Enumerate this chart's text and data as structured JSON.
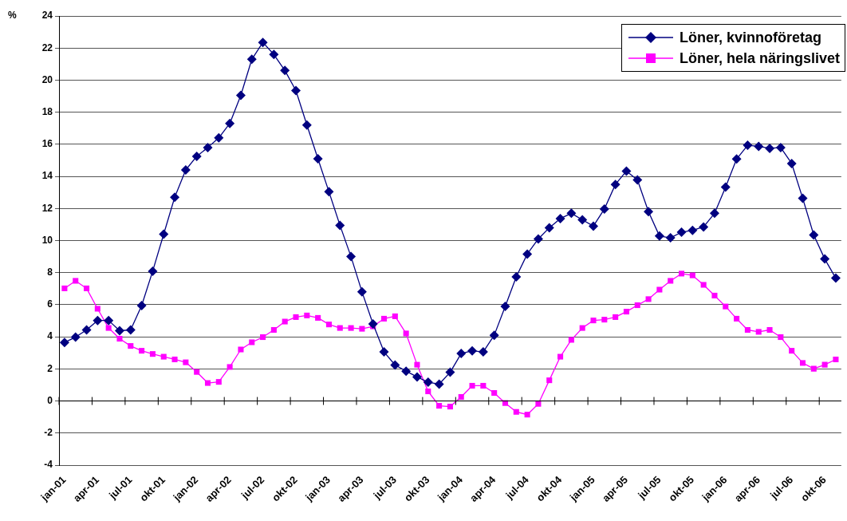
{
  "chart_data": {
    "type": "line",
    "ylabel": "%",
    "categories": [
      "jan-01",
      null,
      null,
      "apr-01",
      null,
      null,
      "jul-01",
      null,
      null,
      "okt-01",
      null,
      null,
      "jan-02",
      null,
      null,
      "apr-02",
      null,
      null,
      "jul-02",
      null,
      null,
      "okt-02",
      null,
      null,
      "jan-03",
      null,
      null,
      "apr-03",
      null,
      null,
      "jul-03",
      null,
      null,
      "okt-03",
      null,
      null,
      "jan-04",
      null,
      null,
      "apr-04",
      null,
      null,
      "jul-04",
      null,
      null,
      "okt-04",
      null,
      null,
      "jan-05",
      null,
      null,
      "apr-05",
      null,
      null,
      "jul-05",
      null,
      null,
      "okt-05",
      null,
      null,
      "jan-06",
      null,
      null,
      "apr-06",
      null,
      null,
      "jul-06",
      null,
      null,
      "okt-06",
      null
    ],
    "series": [
      {
        "name": "Löner, kvinnoföretag",
        "color": "#000080",
        "marker": "diamond",
        "values": [
          3.65,
          3.98,
          4.43,
          5.02,
          5.02,
          4.38,
          4.43,
          5.95,
          8.09,
          10.4,
          12.7,
          14.4,
          15.25,
          15.8,
          16.4,
          17.3,
          19.05,
          21.3,
          22.35,
          21.6,
          20.6,
          19.35,
          17.2,
          15.1,
          13.04,
          10.95,
          9.0,
          6.8,
          4.8,
          3.06,
          2.24,
          1.86,
          1.5,
          1.17,
          1.05,
          1.79,
          2.96,
          3.13,
          3.06,
          4.1,
          5.9,
          7.74,
          9.16,
          10.1,
          10.8,
          11.37,
          11.7,
          11.29,
          10.9,
          11.97,
          13.5,
          14.33,
          13.78,
          11.8,
          10.28,
          10.17,
          10.52,
          10.64,
          10.85,
          11.7,
          13.33,
          15.08,
          15.94,
          15.87,
          15.75,
          15.8,
          14.8,
          12.63,
          10.35,
          8.85,
          7.66
        ]
      },
      {
        "name": "Löner, hela näringslivet",
        "color": "#ff00ff",
        "marker": "square",
        "values": [
          7.02,
          7.49,
          7.02,
          5.75,
          4.55,
          3.88,
          3.43,
          3.13,
          2.93,
          2.76,
          2.59,
          2.41,
          1.81,
          1.12,
          1.19,
          2.12,
          3.21,
          3.66,
          3.98,
          4.43,
          4.95,
          5.23,
          5.33,
          5.18,
          4.77,
          4.55,
          4.55,
          4.5,
          4.65,
          5.13,
          5.28,
          4.21,
          2.26,
          0.6,
          -0.3,
          -0.35,
          0.25,
          0.95,
          0.95,
          0.5,
          -0.13,
          -0.68,
          -0.85,
          -0.18,
          1.29,
          2.76,
          3.81,
          4.55,
          5.02,
          5.07,
          5.23,
          5.57,
          5.97,
          6.35,
          6.94,
          7.49,
          7.94,
          7.83,
          7.24,
          6.57,
          5.89,
          5.13,
          4.43,
          4.31,
          4.43,
          3.98,
          3.13,
          2.37,
          2.01,
          2.26,
          2.59
        ]
      }
    ],
    "ylim": [
      -4,
      24
    ],
    "yticks": [
      -4,
      -2,
      0,
      2,
      4,
      6,
      8,
      10,
      12,
      14,
      16,
      18,
      20,
      22,
      24
    ],
    "grid": "y",
    "legend": "top right",
    "line_style": "solid"
  }
}
